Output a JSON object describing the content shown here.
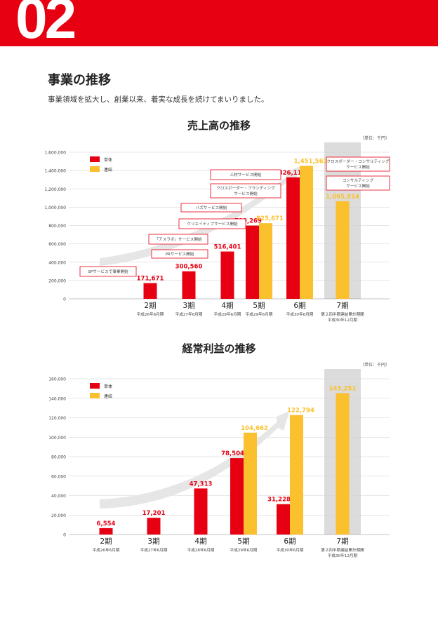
{
  "header": {
    "number": "02"
  },
  "section": {
    "title": "事業の推移",
    "description": "事業領域を拡大し、創業以来、着実な成長を続けてまいりました。"
  },
  "colors": {
    "brand": "#e60012",
    "single": "#e60012",
    "consolidated": "#fbc02d",
    "highlight": "#dcdcdc",
    "arrow": "#e6e6e6"
  },
  "chart_data": [
    {
      "type": "bar",
      "title": "売上高の推移",
      "unit": "（単位：千円）",
      "ylim": [
        0,
        1600000
      ],
      "yticks": [
        "1,600,000",
        "1,400,000",
        "1,200,000",
        "1,000,000",
        "800,000",
        "600,000",
        "400,000",
        "200,000",
        "0"
      ],
      "legend": [
        "単体",
        "連結"
      ],
      "legend_position": "top-left",
      "categories": [
        {
          "label": "2期",
          "sub": [
            "平成26年6月期"
          ]
        },
        {
          "label": "3期",
          "sub": [
            "平成27年6月期"
          ]
        },
        {
          "label": "4期",
          "sub": [
            "平成28年6月期"
          ]
        },
        {
          "label": "5期",
          "sub": [
            "平成29年6月期"
          ]
        },
        {
          "label": "6期",
          "sub": [
            "平成30年6月期"
          ]
        },
        {
          "label": "7期",
          "sub": [
            "第２四半期連結累計期間",
            "平成30年12月期"
          ]
        }
      ],
      "series": [
        {
          "name": "単体",
          "values": [
            171671,
            300560,
            516401,
            799269,
            1326111,
            null
          ]
        },
        {
          "name": "連結",
          "values": [
            null,
            null,
            null,
            825671,
            1451562,
            1065814
          ]
        }
      ],
      "value_labels": {
        "単体": [
          "171,671",
          "300,560",
          "516,401",
          "799,269",
          "1,326,111",
          ""
        ],
        "連結": [
          "",
          "",
          "",
          "825,671",
          "1,451,562",
          "1,065,814"
        ]
      },
      "highlight_category": 5,
      "annotations": [
        "SPサービスで事業開始",
        "PRサービス開始",
        "「アスラボ」サービス開始",
        "クリエイティブサービス開始",
        "バズサービス開始",
        "クロスボーダー・ブランディング",
        "サービス開始",
        "人材サービス開始",
        "クロスボーダー・コンサルティング",
        "サービス開始",
        "コンサルティング",
        "サービス開始"
      ]
    },
    {
      "type": "bar",
      "title": "経常利益の推移",
      "unit": "（単位：千円）",
      "ylim": [
        0,
        160000
      ],
      "yticks": [
        "160,000",
        "140,000",
        "120,000",
        "100,000",
        "80,000",
        "60,000",
        "40,000",
        "20,000",
        "0"
      ],
      "legend": [
        "単体",
        "連結"
      ],
      "legend_position": "top-left",
      "categories": [
        {
          "label": "2期",
          "sub": [
            "平成26年6月期"
          ]
        },
        {
          "label": "3期",
          "sub": [
            "平成27年6月期"
          ]
        },
        {
          "label": "4期",
          "sub": [
            "平成28年6月期"
          ]
        },
        {
          "label": "5期",
          "sub": [
            "平成29年6月期"
          ]
        },
        {
          "label": "6期",
          "sub": [
            "平成30年6月期"
          ]
        },
        {
          "label": "7期",
          "sub": [
            "第２四半期連結累計期間",
            "平成30年12月期"
          ]
        }
      ],
      "series": [
        {
          "name": "単体",
          "values": [
            6554,
            17201,
            47313,
            78504,
            31228,
            null
          ]
        },
        {
          "name": "連結",
          "values": [
            null,
            null,
            null,
            104662,
            122794,
            145251
          ]
        }
      ],
      "value_labels": {
        "単体": [
          "6,554",
          "17,201",
          "47,313",
          "78,504",
          "31,228",
          ""
        ],
        "連結": [
          "",
          "",
          "",
          "104,662",
          "122,794",
          "145,251"
        ]
      },
      "highlight_category": 5
    }
  ]
}
